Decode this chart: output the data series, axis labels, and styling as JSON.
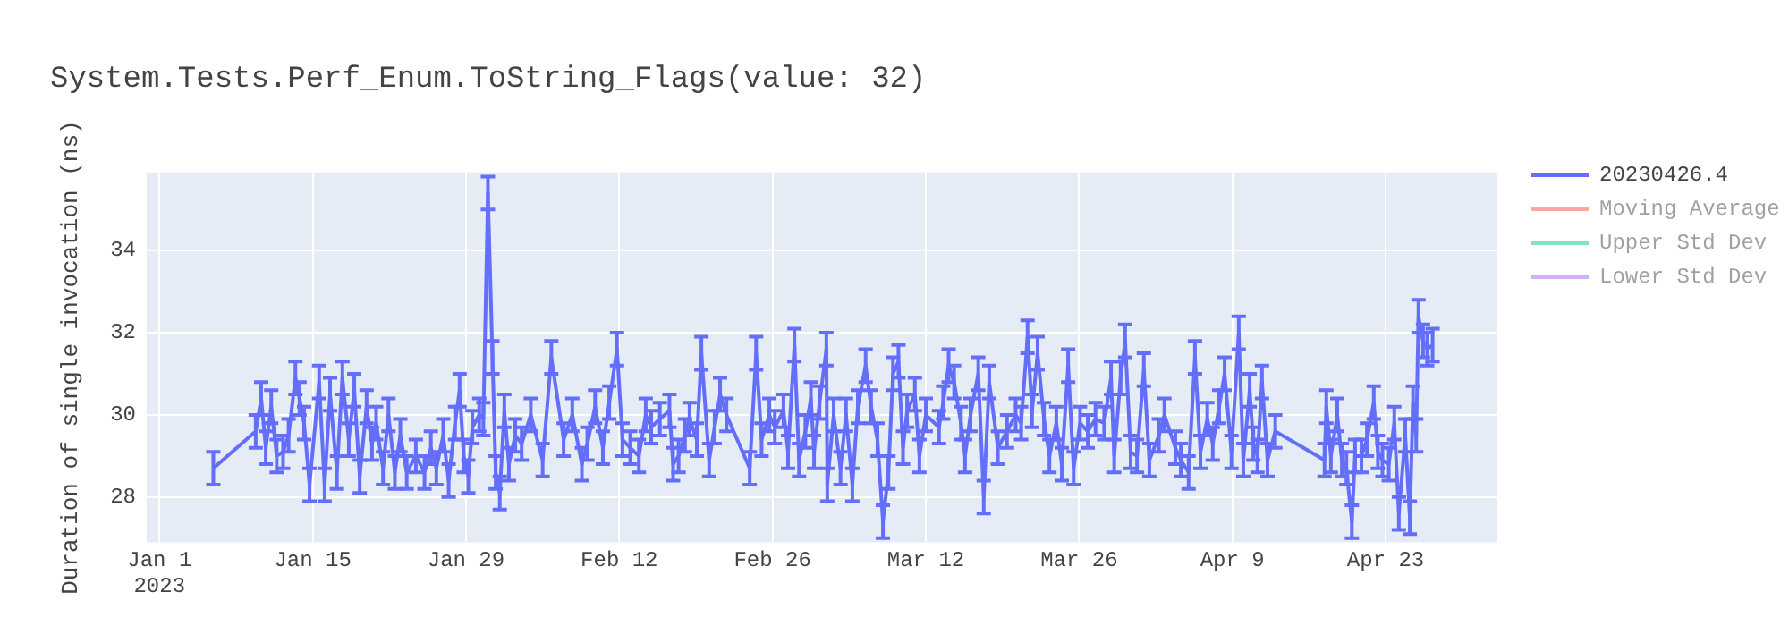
{
  "chart_data": {
    "type": "line",
    "title": "System.Tests.Perf_Enum.ToString_Flags(value: 32)",
    "ylabel": "Duration of single invocation (ns)",
    "x": [
      "2023-01-05T22:00",
      "2023-01-09T19:00",
      "2023-01-10T07:00",
      "2023-01-10T17:00",
      "2023-01-11T05:00",
      "2023-01-11T17:00",
      "2023-01-12T07:00",
      "2023-01-12T19:00",
      "2023-01-13T10:00",
      "2023-01-13T19:00",
      "2023-01-14T05:00",
      "2023-01-14T17:00",
      "2023-01-15T14:00",
      "2023-01-16T02:00",
      "2023-01-16T14:00",
      "2023-01-17T05:00",
      "2023-01-17T17:00",
      "2023-01-18T07:00",
      "2023-01-18T19:00",
      "2023-01-19T07:00",
      "2023-01-19T22:00",
      "2023-01-20T10:00",
      "2023-01-20T19:00",
      "2023-01-21T10:00",
      "2023-01-21T22:00",
      "2023-01-22T12:00",
      "2023-01-23T00:00",
      "2023-01-23T14:00",
      "2023-01-24T10:00",
      "2023-01-25T05:00",
      "2023-01-25T19:00",
      "2023-01-26T07:00",
      "2023-01-26T22:00",
      "2023-01-27T10:00",
      "2023-01-28T00:00",
      "2023-01-28T10:00",
      "2023-01-28T19:00",
      "2023-01-29T05:00",
      "2023-01-29T14:00",
      "2023-01-30T05:00",
      "2023-01-30T14:00",
      "2023-01-31T00:00",
      "2023-01-31T10:00",
      "2023-01-31T17:00",
      "2023-02-01T02:00",
      "2023-02-01T12:00",
      "2023-02-01T22:00",
      "2023-02-02T12:00",
      "2023-02-03T02:00",
      "2023-02-03T22:00",
      "2023-02-05T00:00",
      "2023-02-05T19:00",
      "2023-02-06T22:00",
      "2023-02-07T17:00",
      "2023-02-08T14:00",
      "2023-02-09T02:00",
      "2023-02-09T19:00",
      "2023-02-10T12:00",
      "2023-02-11T02:00",
      "2023-02-11T19:00",
      "2023-02-12T07:00",
      "2023-02-13T00:00",
      "2023-02-13T19:00",
      "2023-02-14T10:00",
      "2023-02-14T22:00",
      "2023-02-15T17:00",
      "2023-02-16T14:00",
      "2023-02-16T22:00",
      "2023-02-17T10:00",
      "2023-02-18T00:00",
      "2023-02-18T10:00",
      "2023-02-19T02:00",
      "2023-02-19T12:00",
      "2023-02-20T05:00",
      "2023-02-20T17:00",
      "2023-02-21T05:00",
      "2023-02-21T19:00",
      "2023-02-23T22:00",
      "2023-02-24T12:00",
      "2023-02-25T00:00",
      "2023-02-25T17:00",
      "2023-02-26T05:00",
      "2023-02-27T00:00",
      "2023-02-27T10:00",
      "2023-02-28T00:00",
      "2023-02-28T10:00",
      "2023-03-01T00:00",
      "2023-03-01T12:00",
      "2023-03-01T19:00",
      "2023-03-02T07:00",
      "2023-03-02T22:00",
      "2023-03-03T00:00",
      "2023-03-03T14:00",
      "2023-03-04T05:00",
      "2023-03-04T17:00",
      "2023-03-05T07:00",
      "2023-03-05T19:00",
      "2023-03-06T12:00",
      "2023-03-07T00:00",
      "2023-03-07T14:00",
      "2023-03-08T02:00",
      "2023-03-08T14:00",
      "2023-03-09T00:00",
      "2023-03-09T12:00",
      "2023-03-09T22:00",
      "2023-03-10T07:00",
      "2023-03-11T00:00",
      "2023-03-11T10:00",
      "2023-03-12T00:00",
      "2023-03-13T05:00",
      "2023-03-13T14:00",
      "2023-03-14T02:00",
      "2023-03-14T14:00",
      "2023-03-15T05:00",
      "2023-03-15T14:00",
      "2023-03-16T02:00",
      "2023-03-16T19:00",
      "2023-03-17T07:00",
      "2023-03-17T19:00",
      "2023-03-18T14:00",
      "2023-03-19T10:00",
      "2023-03-20T05:00",
      "2023-03-20T17:00",
      "2023-03-21T07:00",
      "2023-03-21T17:00",
      "2023-03-22T05:00",
      "2023-03-22T19:00",
      "2023-03-23T07:00",
      "2023-03-23T22:00",
      "2023-03-24T10:00",
      "2023-03-25T00:00",
      "2023-03-25T12:00",
      "2023-03-26T02:00",
      "2023-03-26T19:00",
      "2023-03-27T12:00",
      "2023-03-28T07:00",
      "2023-03-28T22:00",
      "2023-03-29T05:00",
      "2023-03-29T19:00",
      "2023-03-30T05:00",
      "2023-03-30T17:00",
      "2023-03-31T07:00",
      "2023-03-31T22:00",
      "2023-04-01T10:00",
      "2023-04-02T07:00",
      "2023-04-02T19:00",
      "2023-04-03T19:00",
      "2023-04-04T07:00",
      "2023-04-05T00:00",
      "2023-04-05T14:00",
      "2023-04-06T02:00",
      "2023-04-06T17:00",
      "2023-04-07T05:00",
      "2023-04-07T19:00",
      "2023-04-08T07:00",
      "2023-04-08T22:00",
      "2023-04-09T14:00",
      "2023-04-10T00:00",
      "2023-04-10T14:00",
      "2023-04-10T22:00",
      "2023-04-11T07:00",
      "2023-04-11T17:00",
      "2023-04-12T05:00",
      "2023-04-12T22:00",
      "2023-04-17T10:00",
      "2023-04-17T14:00",
      "2023-04-18T00:00",
      "2023-04-18T14:00",
      "2023-04-19T00:00",
      "2023-04-19T10:00",
      "2023-04-19T22:00",
      "2023-04-20T05:00",
      "2023-04-20T19:00",
      "2023-04-21T07:00",
      "2023-04-21T22:00",
      "2023-04-22T07:00",
      "2023-04-22T17:00",
      "2023-04-23T07:00",
      "2023-04-23T19:00",
      "2023-04-24T05:00",
      "2023-04-24T19:00",
      "2023-04-25T05:00",
      "2023-04-25T12:00",
      "2023-04-25T19:00",
      "2023-04-26T00:00",
      "2023-04-26T10:00",
      "2023-04-26T19:00",
      "2023-04-27T07:00"
    ],
    "series": [
      {
        "name": "20230426.4",
        "color": "#636efa",
        "values": [
          28.7,
          29.6,
          30.4,
          29.2,
          30.2,
          29.0,
          29.1,
          29.5,
          30.9,
          30.4,
          29.8,
          28.3,
          30.8,
          28.3,
          30.5,
          28.6,
          30.9,
          29.4,
          30.6,
          28.5,
          30.2,
          29.3,
          29.8,
          28.7,
          30.0,
          28.6,
          29.5,
          28.6,
          29.0,
          28.6,
          29.2,
          28.7,
          29.5,
          28.4,
          29.8,
          30.6,
          29.0,
          28.5,
          29.7,
          30.0,
          29.9,
          35.4,
          31.4,
          28.6,
          28.1,
          30.1,
          28.8,
          29.5,
          29.3,
          30.0,
          28.9,
          31.4,
          29.4,
          30.0,
          28.8,
          29.3,
          30.2,
          29.2,
          30.3,
          31.6,
          29.4,
          29.2,
          29.0,
          30.0,
          29.7,
          29.9,
          30.1,
          28.8,
          29.0,
          29.5,
          29.9,
          29.4,
          31.5,
          28.9,
          29.7,
          30.5,
          30.0,
          28.7,
          31.5,
          29.4,
          30.0,
          29.7,
          30.1,
          29.1,
          31.7,
          28.9,
          29.6,
          30.4,
          29.1,
          30.3,
          31.6,
          28.3,
          30.0,
          28.7,
          30.0,
          28.3,
          30.2,
          31.2,
          30.2,
          29.4,
          27.4,
          28.6,
          31.0,
          31.3,
          29.2,
          30.1,
          30.5,
          29.0,
          30.0,
          29.7,
          30.3,
          31.2,
          30.8,
          29.8,
          29.0,
          30.0,
          31.0,
          28.0,
          30.8,
          29.2,
          29.6,
          30.0,
          29.8,
          31.9,
          30.1,
          31.5,
          29.9,
          29.0,
          29.8,
          28.8,
          31.2,
          28.7,
          29.8,
          29.6,
          29.9,
          29.8,
          30.9,
          29.0,
          30.9,
          31.8,
          29.1,
          29.0,
          31.1,
          28.9,
          29.5,
          30.0,
          29.2,
          28.9,
          28.6,
          31.4,
          29.1,
          29.9,
          29.3,
          30.2,
          31.0,
          29.1,
          32.0,
          28.9,
          30.6,
          29.3,
          29.0,
          30.8,
          28.9,
          29.6,
          28.9,
          30.2,
          29.0,
          30.0,
          28.9,
          28.7,
          27.4,
          29.0,
          29.0,
          29.4,
          30.3,
          29.1,
          28.9,
          28.8,
          29.8,
          27.6,
          29.5,
          27.5,
          30.3,
          29.5,
          32.4,
          31.8,
          31.6,
          31.7
        ],
        "errors": [
          0.4,
          0.4,
          0.4,
          0.4,
          0.4,
          0.4,
          0.4,
          0.4,
          0.4,
          0.4,
          0.4,
          0.4,
          0.4,
          0.4,
          0.4,
          0.4,
          0.4,
          0.4,
          0.4,
          0.4,
          0.4,
          0.4,
          0.4,
          0.4,
          0.4,
          0.4,
          0.4,
          0.4,
          0.4,
          0.4,
          0.4,
          0.4,
          0.4,
          0.4,
          0.4,
          0.4,
          0.4,
          0.4,
          0.4,
          0.4,
          0.4,
          0.4,
          0.4,
          0.4,
          0.4,
          0.4,
          0.4,
          0.4,
          0.4,
          0.4,
          0.4,
          0.4,
          0.4,
          0.4,
          0.4,
          0.4,
          0.4,
          0.4,
          0.4,
          0.4,
          0.4,
          0.4,
          0.4,
          0.4,
          0.4,
          0.4,
          0.4,
          0.4,
          0.4,
          0.4,
          0.4,
          0.4,
          0.4,
          0.4,
          0.4,
          0.4,
          0.4,
          0.4,
          0.4,
          0.4,
          0.4,
          0.4,
          0.4,
          0.4,
          0.4,
          0.4,
          0.4,
          0.4,
          0.4,
          0.4,
          0.4,
          0.4,
          0.4,
          0.4,
          0.4,
          0.4,
          0.4,
          0.4,
          0.4,
          0.4,
          0.4,
          0.4,
          0.4,
          0.4,
          0.4,
          0.4,
          0.4,
          0.4,
          0.4,
          0.4,
          0.4,
          0.4,
          0.4,
          0.4,
          0.4,
          0.4,
          0.4,
          0.4,
          0.4,
          0.4,
          0.4,
          0.4,
          0.4,
          0.4,
          0.4,
          0.4,
          0.4,
          0.4,
          0.4,
          0.4,
          0.4,
          0.4,
          0.4,
          0.4,
          0.4,
          0.4,
          0.4,
          0.4,
          0.4,
          0.4,
          0.4,
          0.4,
          0.4,
          0.4,
          0.4,
          0.4,
          0.4,
          0.4,
          0.4,
          0.4,
          0.4,
          0.4,
          0.4,
          0.4,
          0.4,
          0.4,
          0.4,
          0.4,
          0.4,
          0.4,
          0.4,
          0.4,
          0.4,
          0.4,
          0.4,
          0.4,
          0.4,
          0.4,
          0.4,
          0.4,
          0.4,
          0.4,
          0.4,
          0.4,
          0.4,
          0.4,
          0.4,
          0.4,
          0.4,
          0.4,
          0.4,
          0.4,
          0.4,
          0.4,
          0.4,
          0.4,
          0.4,
          0.4
        ]
      },
      {
        "name": "Moving Average",
        "color": "#ef553b",
        "values": [
          null,
          null,
          null,
          null,
          null,
          null,
          null,
          null,
          null,
          null,
          null,
          null,
          null,
          null,
          null,
          null,
          null,
          null,
          null,
          null,
          null,
          null,
          null,
          null,
          null,
          null,
          null,
          null,
          null,
          null,
          null,
          null,
          null,
          null,
          null,
          null,
          null,
          null,
          null,
          null,
          null,
          null,
          null,
          null,
          null,
          null,
          null,
          null,
          null,
          null,
          null,
          null,
          null,
          null,
          null,
          null,
          null,
          null,
          null,
          null,
          null,
          null,
          null,
          null,
          null,
          null,
          null,
          null,
          null,
          null,
          null,
          null,
          null,
          null,
          null,
          null,
          null,
          null,
          null,
          null,
          null,
          null,
          null,
          null,
          null,
          null,
          null,
          null,
          null,
          null,
          null,
          null,
          null,
          null,
          null,
          null,
          null,
          null,
          null,
          null,
          null,
          null,
          null,
          null,
          null,
          null,
          null,
          null,
          null,
          null,
          null,
          null,
          null,
          null,
          null,
          null,
          null,
          null,
          null,
          null,
          null,
          null,
          null,
          null,
          null,
          null,
          null,
          null,
          null,
          null,
          null,
          null,
          null,
          null,
          null,
          null,
          null,
          null,
          null,
          null,
          null,
          null,
          null,
          null,
          null,
          null,
          null,
          null,
          null,
          null,
          null,
          null,
          null,
          null,
          null,
          null,
          null,
          null,
          null,
          null,
          null,
          null,
          null,
          null,
          null,
          null,
          null,
          null,
          null,
          null,
          null,
          null,
          null,
          null,
          null,
          null,
          null,
          null,
          null,
          null,
          null,
          null,
          null,
          null,
          null,
          null,
          null,
          null
        ]
      },
      {
        "name": "Upper Std Dev",
        "color": "#00cc96",
        "values": [
          null,
          null,
          null,
          null,
          null,
          null,
          null,
          null,
          null,
          null,
          null,
          null,
          null,
          null,
          null,
          null,
          null,
          null,
          null,
          null,
          null,
          null,
          null,
          null,
          null,
          null,
          null,
          null,
          null,
          null,
          null,
          null,
          null,
          null,
          null,
          null,
          null,
          null,
          null,
          null,
          null,
          null,
          null,
          null,
          null,
          null,
          null,
          null,
          null,
          null,
          null,
          null,
          null,
          null,
          null,
          null,
          null,
          null,
          null,
          null,
          null,
          null,
          null,
          null,
          null,
          null,
          null,
          null,
          null,
          null,
          null,
          null,
          null,
          null,
          null,
          null,
          null,
          null,
          null,
          null,
          null,
          null,
          null,
          null,
          null,
          null,
          null,
          null,
          null,
          null,
          null,
          null,
          null,
          null,
          null,
          null,
          null,
          null,
          null,
          null,
          null,
          null,
          null,
          null,
          null,
          null,
          null,
          null,
          null,
          null,
          null,
          null,
          null,
          null,
          null,
          null,
          null,
          null,
          null,
          null,
          null,
          null,
          null,
          null,
          null,
          null,
          null,
          null,
          null,
          null,
          null,
          null,
          null,
          null,
          null,
          null,
          null,
          null,
          null,
          null,
          null,
          null,
          null,
          null,
          null,
          null,
          null,
          null,
          null,
          null,
          null,
          null,
          null,
          null,
          null,
          null,
          null,
          null,
          null,
          null,
          null,
          null,
          null,
          null,
          null,
          null,
          null,
          null,
          null,
          null,
          null,
          null,
          null,
          null,
          null,
          null,
          null,
          null,
          null,
          null,
          null,
          null,
          null,
          null,
          null,
          null,
          null,
          null
        ]
      },
      {
        "name": "Lower Std Dev",
        "color": "#ab63fa",
        "values": [
          null,
          null,
          null,
          null,
          null,
          null,
          null,
          null,
          null,
          null,
          null,
          null,
          null,
          null,
          null,
          null,
          null,
          null,
          null,
          null,
          null,
          null,
          null,
          null,
          null,
          null,
          null,
          null,
          null,
          null,
          null,
          null,
          null,
          null,
          null,
          null,
          null,
          null,
          null,
          null,
          null,
          null,
          null,
          null,
          null,
          null,
          null,
          null,
          null,
          null,
          null,
          null,
          null,
          null,
          null,
          null,
          null,
          null,
          null,
          null,
          null,
          null,
          null,
          null,
          null,
          null,
          null,
          null,
          null,
          null,
          null,
          null,
          null,
          null,
          null,
          null,
          null,
          null,
          null,
          null,
          null,
          null,
          null,
          null,
          null,
          null,
          null,
          null,
          null,
          null,
          null,
          null,
          null,
          null,
          null,
          null,
          null,
          null,
          null,
          null,
          null,
          null,
          null,
          null,
          null,
          null,
          null,
          null,
          null,
          null,
          null,
          null,
          null,
          null,
          null,
          null,
          null,
          null,
          null,
          null,
          null,
          null,
          null,
          null,
          null,
          null,
          null,
          null,
          null,
          null,
          null,
          null,
          null,
          null,
          null,
          null,
          null,
          null,
          null,
          null,
          null,
          null,
          null,
          null,
          null,
          null,
          null,
          null,
          null,
          null,
          null,
          null,
          null,
          null,
          null,
          null,
          null,
          null,
          null,
          null,
          null,
          null,
          null,
          null,
          null,
          null,
          null,
          null,
          null,
          null,
          null,
          null,
          null,
          null,
          null,
          null,
          null,
          null,
          null,
          null,
          null,
          null,
          null,
          null,
          null,
          null,
          null,
          null
        ]
      }
    ],
    "xlim": [
      "2022-12-30T20:00",
      "2023-05-03T05:00"
    ],
    "xticks": [
      {
        "value": "2023-01-01",
        "label": "Jan 1\n2023"
      },
      {
        "value": "2023-01-15",
        "label": "Jan 15"
      },
      {
        "value": "2023-01-29",
        "label": "Jan 29"
      },
      {
        "value": "2023-02-12",
        "label": "Feb 12"
      },
      {
        "value": "2023-02-26",
        "label": "Feb 26"
      },
      {
        "value": "2023-03-12",
        "label": "Mar 12"
      },
      {
        "value": "2023-03-26",
        "label": "Mar 26"
      },
      {
        "value": "2023-04-09",
        "label": "Apr 9"
      },
      {
        "value": "2023-04-23",
        "label": "Apr 23"
      }
    ],
    "ylim": [
      26.9,
      35.9
    ],
    "yticks": [
      28,
      30,
      32,
      34
    ],
    "grid": true,
    "legend": "right"
  }
}
